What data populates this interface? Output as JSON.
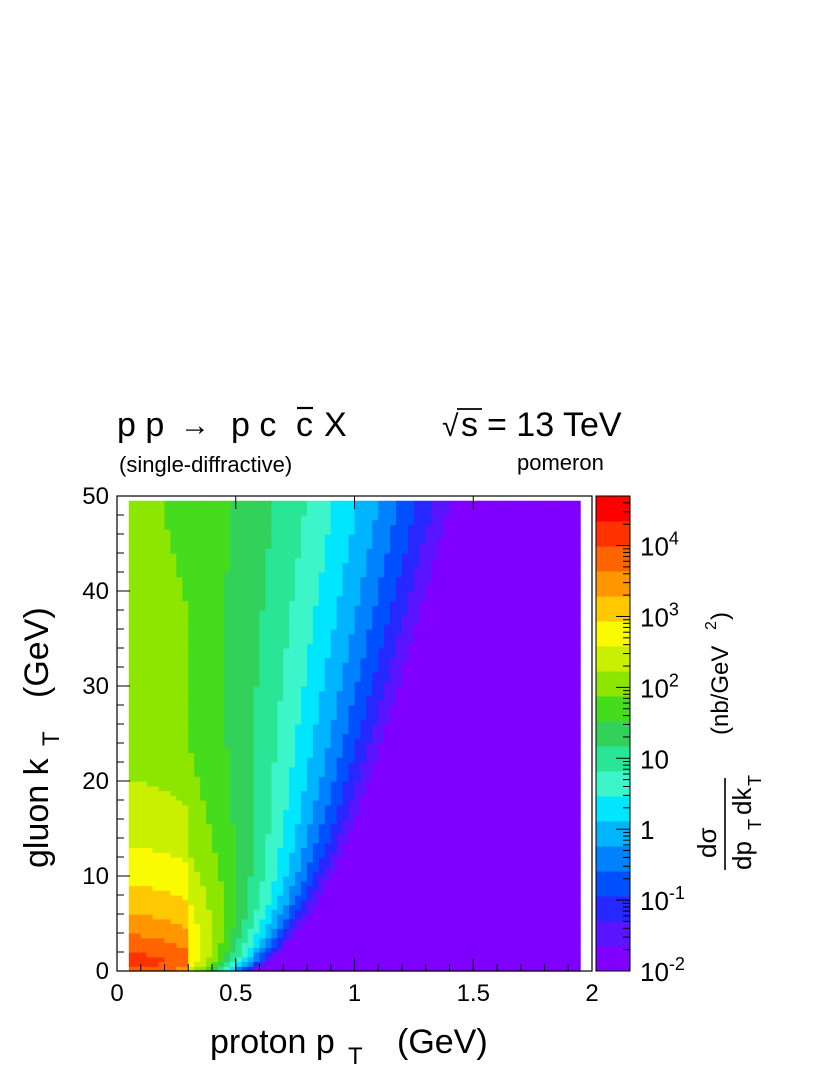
{
  "chart_data": {
    "type": "heatmap",
    "title": {
      "process_p1": "p p",
      "process_arrow": "→",
      "process_p2": "p c",
      "process_cbar": "c",
      "process_x": "X",
      "energy_root": "√",
      "energy_s": "s",
      "energy_value": "= 13 TeV",
      "subtitle": "(single-diffractive)",
      "exchange": "pomeron"
    },
    "x_axis": {
      "label_main": "proton p",
      "label_sub": "T",
      "label_unit": "(GeV)",
      "range": [
        0,
        2
      ],
      "tick_values": [
        0,
        0.5,
        1,
        1.5,
        2
      ],
      "tick_labels": [
        "0",
        "0.5",
        "1",
        "1.5",
        "2"
      ]
    },
    "y_axis": {
      "label_main": "gluon k",
      "label_sub": "T",
      "label_unit": "(GeV)",
      "range": [
        0,
        50
      ],
      "tick_values": [
        0,
        10,
        20,
        30,
        40,
        50
      ],
      "tick_labels": [
        "0",
        "10",
        "20",
        "30",
        "40",
        "50"
      ]
    },
    "z_axis": {
      "scale": "log",
      "range": [
        0.01,
        50000
      ],
      "label_num": "dσ",
      "label_den_a": "dp",
      "label_den_sub1": "T",
      "label_den_b": "dk",
      "label_den_sub2": "T",
      "label_unit_a": "(nb/GeV",
      "label_unit_sup": "2",
      "label_unit_b": ")",
      "tick_labels": [
        {
          "value": 10000,
          "base": "10",
          "exp": "4"
        },
        {
          "value": 1000,
          "base": "10",
          "exp": "3"
        },
        {
          "value": 100,
          "base": "10",
          "exp": "2"
        },
        {
          "value": 10,
          "base": "10",
          "exp": ""
        },
        {
          "value": 1,
          "base": "1",
          "exp": ""
        },
        {
          "value": 0.1,
          "base": "10",
          "exp": "-1"
        },
        {
          "value": 0.01,
          "base": "10",
          "exp": "-2"
        }
      ],
      "palette": [
        "#7f00ff",
        "#5a14ff",
        "#2727ff",
        "#0050ff",
        "#0082ff",
        "#00b4ff",
        "#00e6ff",
        "#3cf5c8",
        "#28e696",
        "#32d25a",
        "#46dc1e",
        "#8ce600",
        "#c8f000",
        "#fafa00",
        "#ffc800",
        "#ff9600",
        "#ff6400",
        "#ff3200",
        "#ff0000"
      ]
    },
    "grid": false,
    "model": {
      "description_omitted": true,
      "peak_value": 30000,
      "peak_pt": 0.3,
      "peak_kt": 2,
      "pt_slope": 0.014,
      "pt_base": 0.6,
      "kt_decay": 0.045
    }
  }
}
